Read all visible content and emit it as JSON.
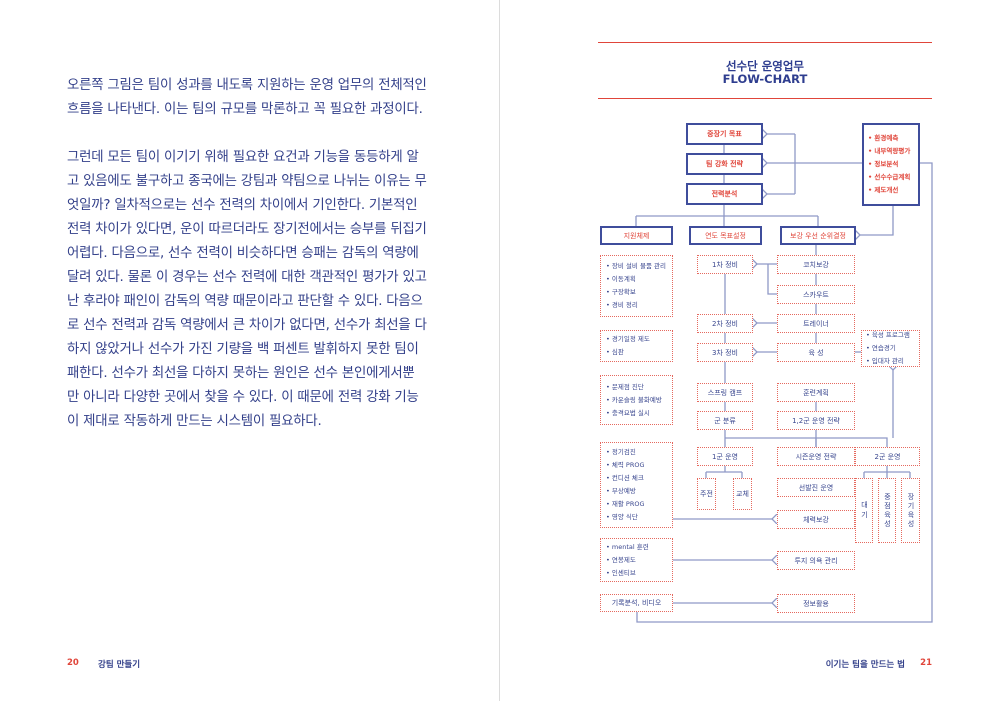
{
  "left_page": {
    "paragraph1": [
      "오른쪽 그림은 팀이 성과를 내도록 지원하는 운영 업무의 전체적인",
      "흐름을 나타낸다. 이는 팀의 규모를 막론하고 꼭 필요한 과정이다."
    ],
    "paragraph2": [
      "그런데 모든 팀이 이기기 위해 필요한 요건과 기능을 동등하게 알",
      "고 있음에도 불구하고 종국에는 강팀과 약팀으로 나뉘는 이유는 무",
      "엇일까? 일차적으로는 선수 전력의 차이에서 기인한다. 기본적인",
      "전력 차이가 있다면, 운이 따르더라도 장기전에서는 승부를 뒤집기",
      "어렵다. 다음으로, 선수 전력이 비슷하다면 승패는 감독의 역량에",
      "달려 있다. 물론 이 경우는 선수 전력에 대한 객관적인 평가가 있고",
      "난 후라야 패인이 감독의 역량 때문이라고 판단할 수 있다. 다음으",
      "로 선수 전력과 감독 역량에서 큰 차이가 없다면, 선수가 최선을 다",
      "하지 않았거나 선수가 가진 기량을 백 퍼센트 발휘하지 못한 팀이",
      "패한다. 선수가 최선을 다하지 못하는 원인은 선수 본인에게서뿐",
      "만 아니라 다양한 곳에서 찾을 수 있다. 이 때문에 전력 강화 기능",
      "이 제대로 작동하게 만드는 시스템이 필요하다."
    ],
    "page_number": "20",
    "running_head": "강팀 만들기"
  },
  "right_page": {
    "title": "선수단 운영업무",
    "subtitle": "FLOW-CHART",
    "page_number": "21",
    "running_head": "이기는 팀을 만드는 법"
  },
  "flowchart": {
    "top": [
      "중장기 목표",
      "팀 강화 전략",
      "전력분석"
    ],
    "inputs": [
      "환경예측",
      "내부역량평가",
      "정보분석",
      "선수수급계획",
      "제도개선"
    ],
    "level2": [
      "지원체제",
      "연도 목표설정",
      "보강 우선 순위결정"
    ],
    "support": {
      "group1": [
        "장비 설비 물품 관리",
        "이동계획",
        "구장확보",
        "경비 정리"
      ],
      "group2": [
        "경기일정 제도",
        "심판"
      ],
      "group3": [
        "문제점 진단",
        "카운슬링 불화예방",
        "충격요법 실시"
      ],
      "group4": [
        "정기검진",
        "체력 PROG",
        "컨디션 체크",
        "부상예방",
        "재활 PROG",
        "영양 식단"
      ],
      "group5": [
        "mental 훈련",
        "연봉제도",
        "인센티브"
      ],
      "group6": "기록분석, 비디오"
    },
    "middle": [
      "1차 정비",
      "2차 정비",
      "3차 정비",
      "스프링 캠프",
      "군 분류",
      "1군 운영"
    ],
    "first_team": [
      "주전",
      "교체"
    ],
    "right": [
      "코치보강",
      "스카우트",
      "트레이너",
      "육 성",
      "훈련계획",
      "1,2군 운영 전략",
      "시즌운영 전략",
      "선발진 운영",
      "체력보강",
      "투지 의욕 관리",
      "정보활용"
    ],
    "development": [
      "육성 프로그램",
      "연습경기",
      "입대자 관리"
    ],
    "second_team": "2군 운영",
    "second_team_sub": [
      "대기",
      "중점육성",
      "장기육성"
    ]
  },
  "colors": {
    "navy": "#33408a",
    "red": "#e0453a",
    "line": "#8f99c7"
  }
}
